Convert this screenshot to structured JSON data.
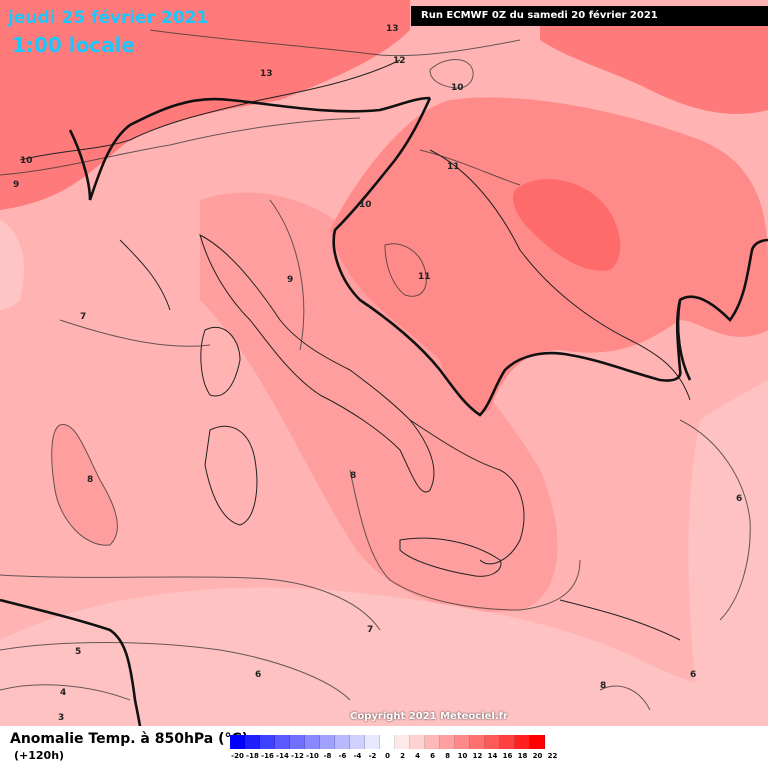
{
  "header": {
    "date": "jeudi 25 février 2021",
    "time": "1:00 locale",
    "run": "Run ECMWF 0Z du samedi 20 février 2021"
  },
  "map": {
    "copyright": "Copyright 2021 Meteociel.fr",
    "isotherm_labels": [
      "13",
      "13",
      "12",
      "10",
      "10",
      "9",
      "11",
      "10",
      "11",
      "9",
      "7",
      "8",
      "8",
      "7",
      "5",
      "4",
      "3",
      "6",
      "6",
      "8",
      "6"
    ]
  },
  "footer": {
    "variable": "Anomalie Temp. à 850hPa (°C)",
    "lead": "(+120h)"
  },
  "scale": {
    "labels": [
      "-20",
      "-18",
      "-16",
      "-14",
      "-12",
      "-10",
      "-8",
      "-6",
      "-4",
      "-2",
      "0",
      "2",
      "4",
      "6",
      "8",
      "10",
      "12",
      "14",
      "16",
      "18",
      "20",
      "22"
    ],
    "colors": [
      "#0000ff",
      "#2020ff",
      "#4040ff",
      "#5a5aff",
      "#7070ff",
      "#8888ff",
      "#a0a0ff",
      "#b8b8ff",
      "#d0d0ff",
      "#e8e8ff",
      "#ffffff",
      "#ffe8e8",
      "#ffd0d0",
      "#ffb8b8",
      "#ffa0a0",
      "#ff8888",
      "#ff7070",
      "#ff5a5a",
      "#ff4040",
      "#ff2020",
      "#ff0000"
    ]
  }
}
